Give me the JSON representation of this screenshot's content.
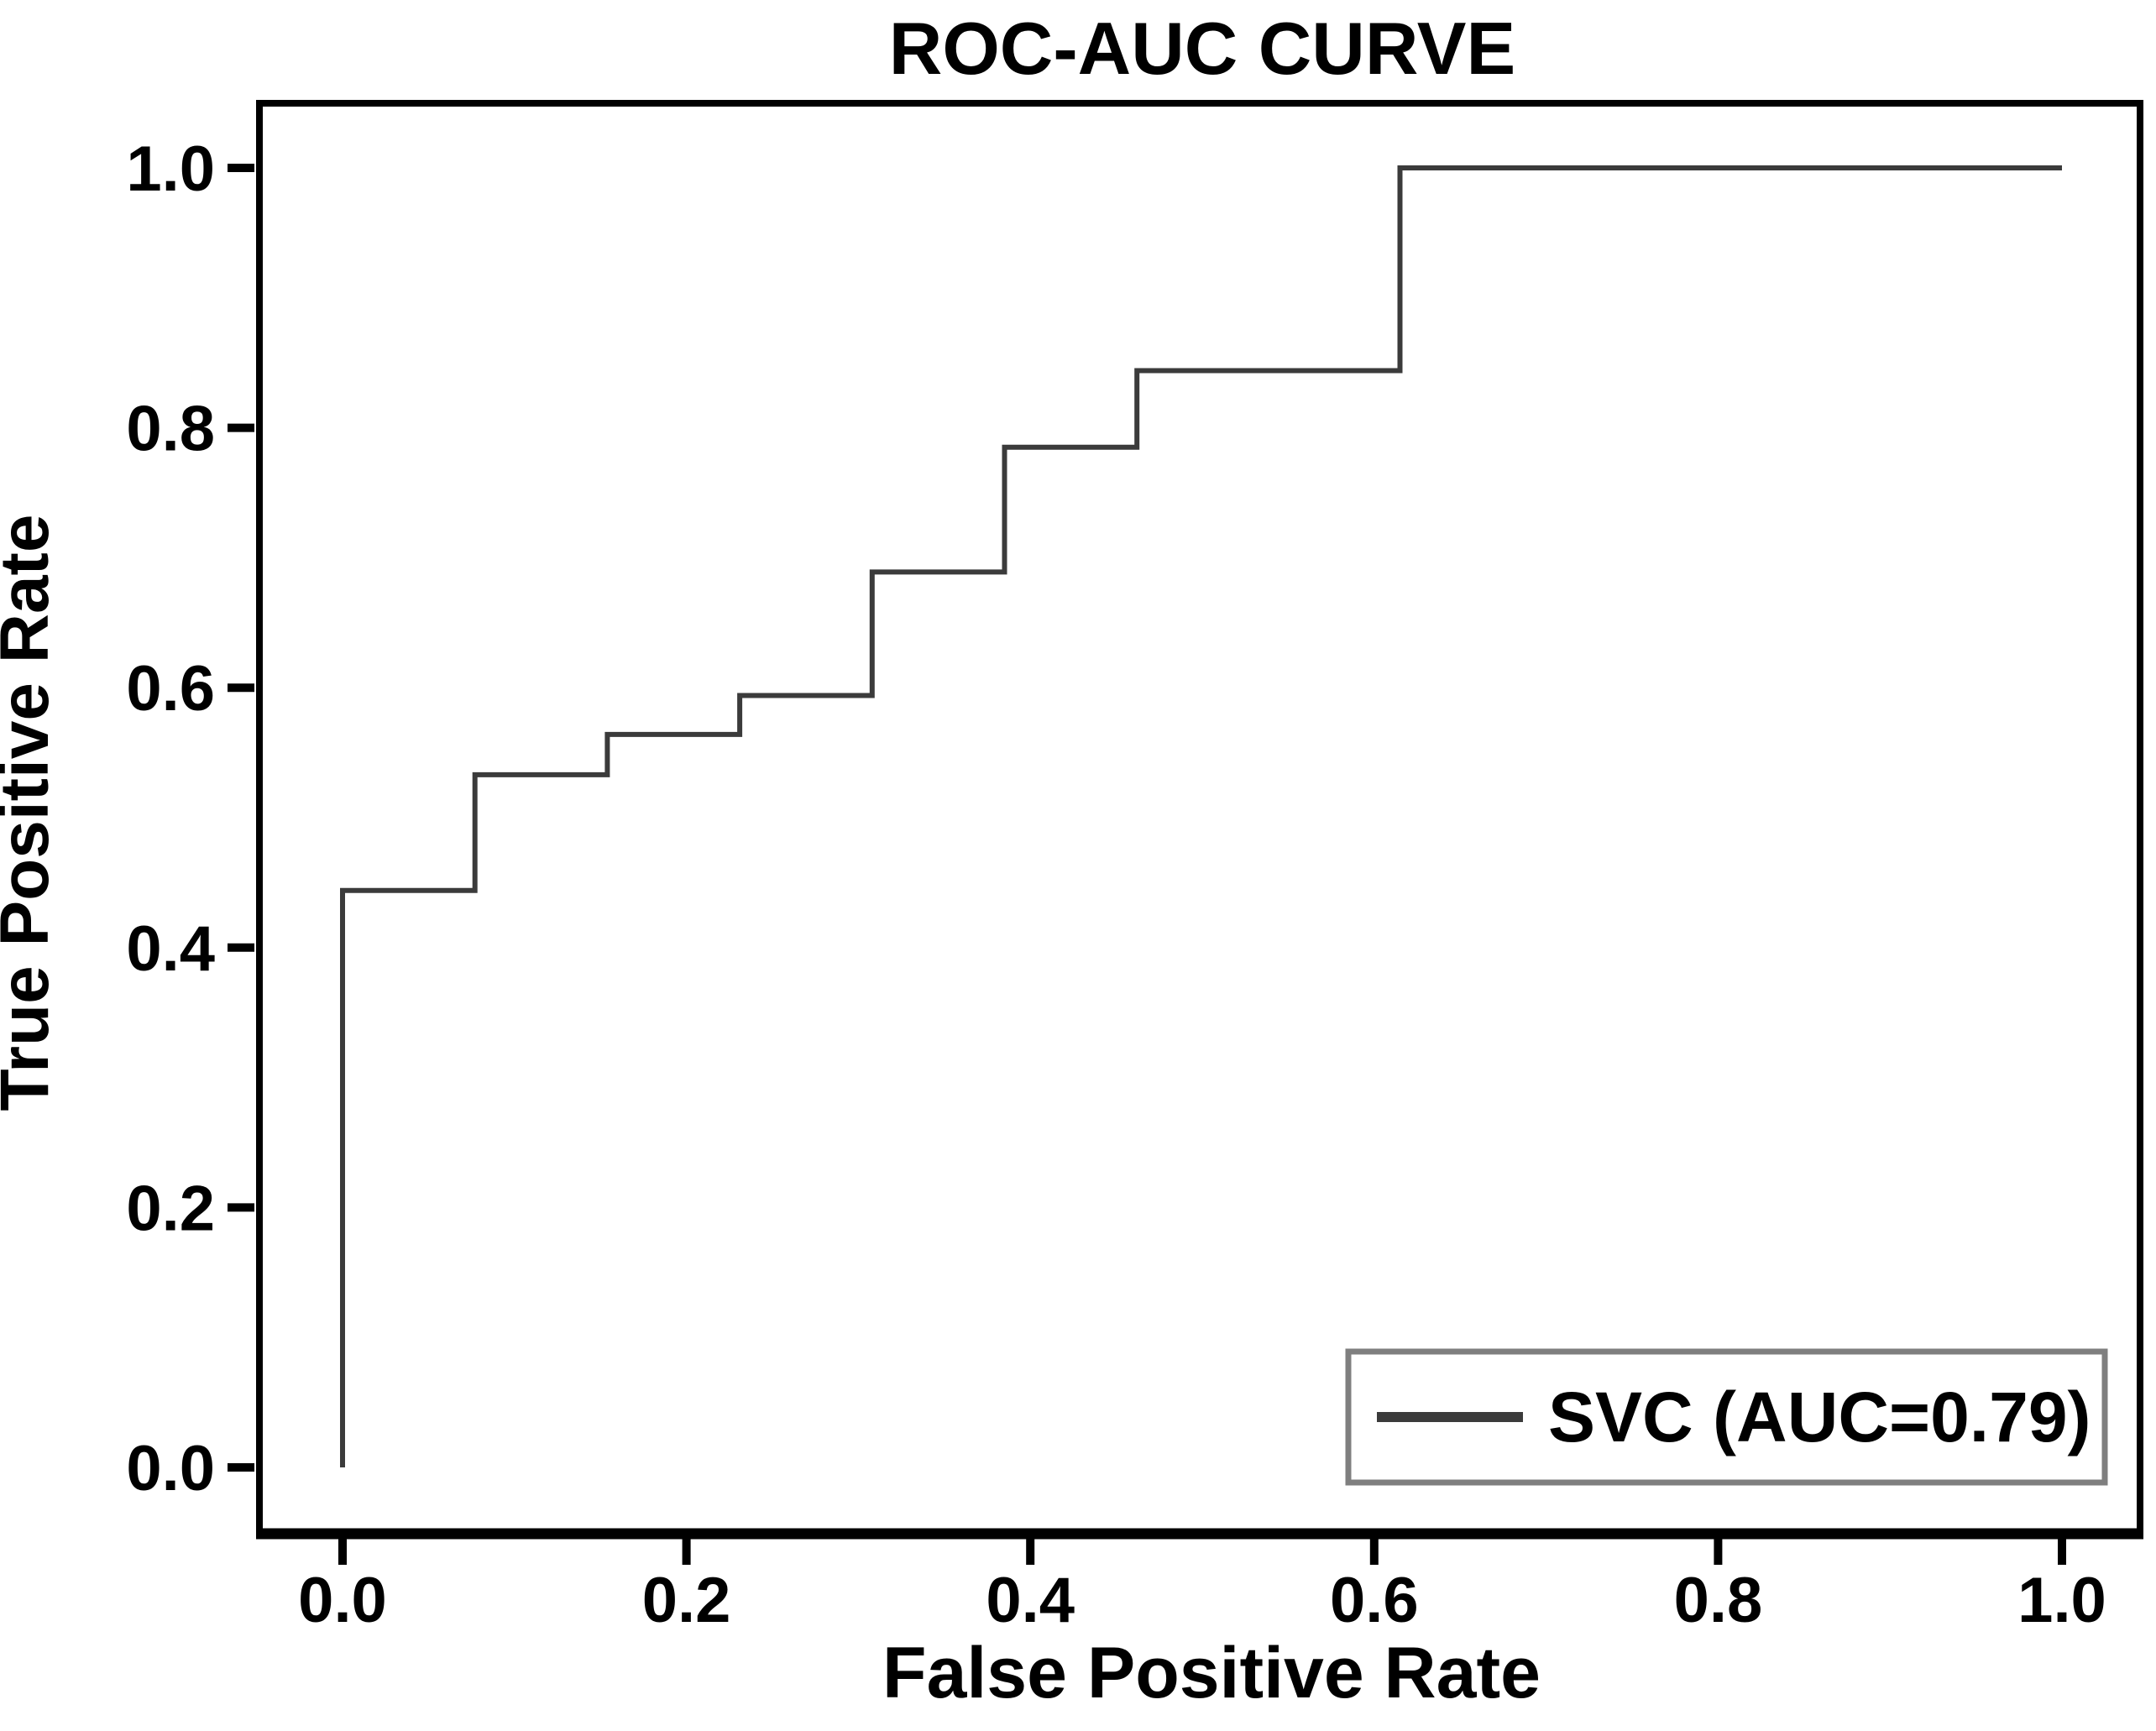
{
  "chart_data": {
    "type": "line",
    "subtype": "roc-step-curve",
    "title": "ROC-AUC CURVE",
    "xlabel": "False Positive Rate",
    "ylabel": "True Positive Rate",
    "xlim": [
      0.0,
      1.0
    ],
    "ylim": [
      0.0,
      1.0
    ],
    "grid": false,
    "x_tick_values": [
      0.0,
      0.2,
      0.4,
      0.6,
      0.8,
      1.0
    ],
    "x_tick_labels": [
      "0.0",
      "0.2",
      "0.4",
      "0.6",
      "0.8",
      "1.0"
    ],
    "y_tick_values": [
      0.0,
      0.2,
      0.4,
      0.6,
      0.8,
      1.0
    ],
    "y_tick_labels": [
      "0.0",
      "0.2",
      "0.4",
      "0.6",
      "0.8",
      "1.0"
    ],
    "legend": {
      "position": "lower right",
      "entries": [
        {
          "label": "SVC (AUC=0.79)",
          "color": "#3b3b3b"
        }
      ]
    },
    "series": [
      {
        "name": "SVC",
        "auc": 0.79,
        "legend_label": "SVC (AUC=0.79)",
        "color": "#3b3b3b",
        "points": [
          [
            0.0,
            0.0
          ],
          [
            0.0,
            0.444
          ],
          [
            0.077,
            0.444
          ],
          [
            0.077,
            0.533
          ],
          [
            0.154,
            0.533
          ],
          [
            0.154,
            0.564
          ],
          [
            0.231,
            0.564
          ],
          [
            0.231,
            0.594
          ],
          [
            0.308,
            0.594
          ],
          [
            0.308,
            0.689
          ],
          [
            0.385,
            0.689
          ],
          [
            0.385,
            0.785
          ],
          [
            0.462,
            0.785
          ],
          [
            0.462,
            0.844
          ],
          [
            0.615,
            0.844
          ],
          [
            0.615,
            1.0
          ],
          [
            1.0,
            1.0
          ]
        ]
      }
    ],
    "colors": {
      "text": "#000000",
      "spine": "#000000",
      "curve": "#3b3b3b",
      "legend_border": "#7f7f7f",
      "background": "#ffffff"
    }
  }
}
